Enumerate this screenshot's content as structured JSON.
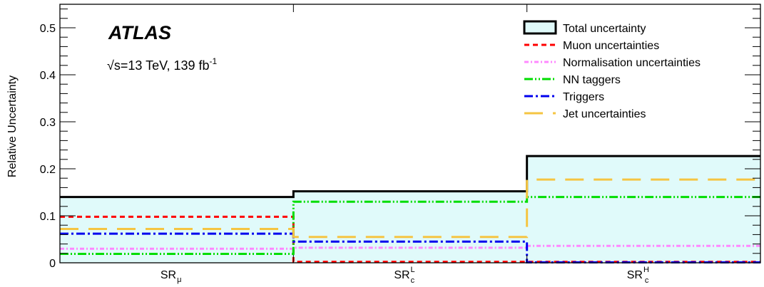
{
  "chart_data": {
    "type": "step",
    "ylabel": "Relative Uncertainty",
    "ylim": [
      0,
      0.55
    ],
    "yticks": [
      "0",
      "0.1",
      "0.2",
      "0.3",
      "0.4",
      "0.5"
    ],
    "categories": [
      {
        "base": "SR",
        "sub": "μ",
        "sup": ""
      },
      {
        "base": "SR",
        "sub": "c",
        "sup": "L"
      },
      {
        "base": "SR",
        "sub": "c",
        "sup": "H"
      }
    ],
    "annotation": {
      "experiment": "ATLAS",
      "energy_prefix": "√s=13 TeV, 139 fb",
      "energy_sup": "-1"
    },
    "legend_position": "top-right",
    "series": [
      {
        "name": "Total uncertainty",
        "style": "band",
        "color": "#000000",
        "fill": "#e0fafa",
        "values": [
          0.14,
          0.152,
          0.227
        ]
      },
      {
        "name": "Muon uncertainties",
        "style": "dashed",
        "color": "#ff0000",
        "values": [
          0.098,
          0.002,
          0.002
        ]
      },
      {
        "name": "Normalisation uncertainties",
        "style": "dashdot-fine",
        "color": "#ff88ff",
        "values": [
          0.03,
          0.032,
          0.036
        ]
      },
      {
        "name": "NN taggers",
        "style": "dashdotdot",
        "color": "#00dd00",
        "values": [
          0.019,
          0.13,
          0.14
        ]
      },
      {
        "name": "Triggers",
        "style": "dashdot",
        "color": "#0000ee",
        "values": [
          0.062,
          0.045,
          0.001
        ]
      },
      {
        "name": "Jet uncertainties",
        "style": "longdash",
        "color": "#f5c542",
        "values": [
          0.072,
          0.055,
          0.177
        ]
      }
    ]
  }
}
